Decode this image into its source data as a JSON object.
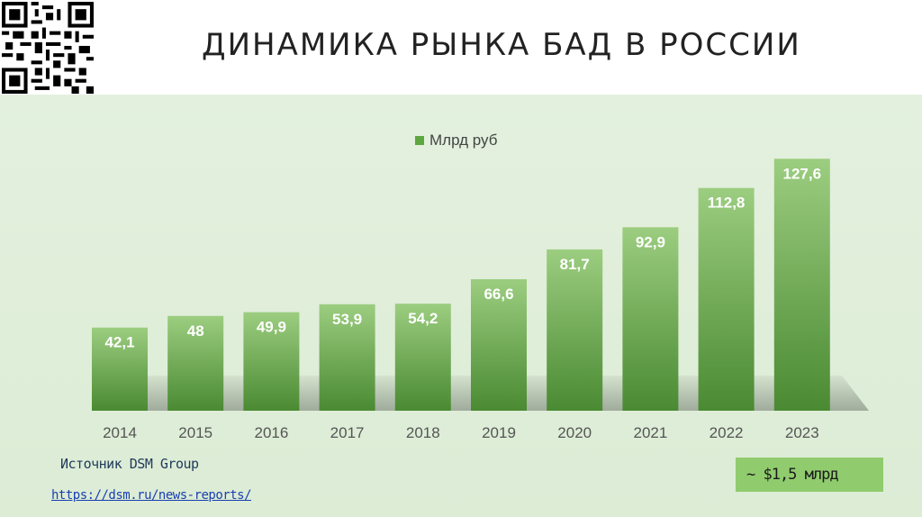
{
  "header": {
    "title": "ДИНАМИКА РЫНКА БАД В РОССИИ"
  },
  "footer": {
    "source_label": "Источник DSM Group",
    "source_link": "https://dsm.ru/news-reports/",
    "usd_note": "~ $1,5 млрд"
  },
  "colors": {
    "panel_bg": "#dcecd5",
    "bar_top": "#9ccd80",
    "bar_bottom": "#4a8a32",
    "legend_swatch": "#5ea640",
    "usd_box": "#90cc6e"
  },
  "chart_data": {
    "type": "bar",
    "title": "",
    "xlabel": "",
    "ylabel": "",
    "categories": [
      "2014",
      "2015",
      "2016",
      "2017",
      "2018",
      "2019",
      "2020",
      "2021",
      "2022",
      "2023"
    ],
    "series": [
      {
        "name": "Млрд руб",
        "values": [
          42.1,
          48,
          49.9,
          53.9,
          54.2,
          66.6,
          81.7,
          92.9,
          112.8,
          127.6
        ],
        "labels": [
          "42,1",
          "48",
          "49,9",
          "53,9",
          "54,2",
          "66,6",
          "81,7",
          "92,9",
          "112,8",
          "127,6"
        ]
      }
    ],
    "ylim": [
      0,
      130
    ],
    "grid": false,
    "legend": "top-center"
  }
}
